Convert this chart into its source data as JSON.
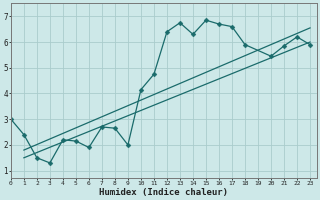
{
  "xlabel": "Humidex (Indice chaleur)",
  "ylabel": "",
  "x_ticks": [
    0,
    1,
    2,
    3,
    4,
    5,
    6,
    7,
    8,
    9,
    10,
    11,
    12,
    13,
    14,
    15,
    16,
    17,
    18,
    19,
    20,
    21,
    22,
    23
  ],
  "ylim": [
    0.7,
    7.5
  ],
  "xlim": [
    0,
    23.5
  ],
  "bg_color": "#cde8e8",
  "grid_color": "#aacccc",
  "line_color": "#1a6b6b",
  "line1_x": [
    0,
    1,
    2,
    3,
    4,
    5,
    6,
    7,
    8,
    9,
    10,
    11,
    12,
    13,
    14,
    15,
    16,
    17,
    18,
    20,
    21,
    22,
    23
  ],
  "line1_y": [
    3.0,
    2.4,
    1.5,
    1.3,
    2.2,
    2.15,
    1.9,
    2.7,
    2.65,
    2.0,
    4.15,
    4.75,
    6.4,
    6.75,
    6.3,
    6.85,
    6.7,
    6.6,
    5.9,
    5.45,
    5.85,
    6.2,
    5.9
  ],
  "line2_x": [
    1,
    23
  ],
  "line2_y": [
    1.5,
    6.0
  ],
  "line3_x": [
    1,
    23
  ],
  "line3_y": [
    1.8,
    6.55
  ]
}
